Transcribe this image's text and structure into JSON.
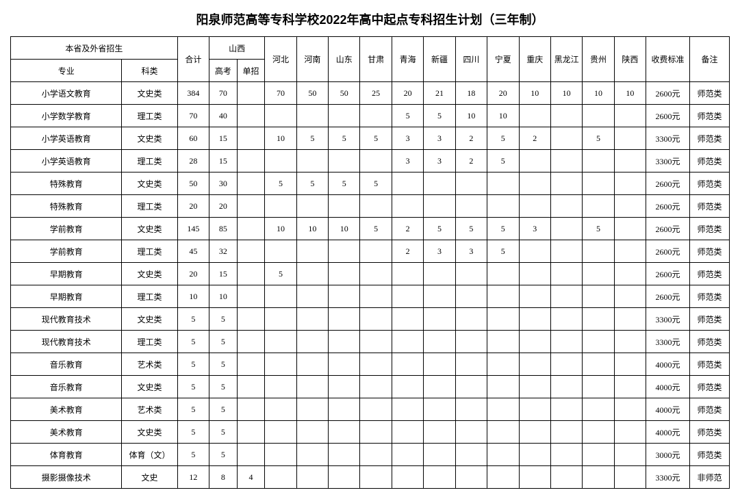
{
  "title": "阳泉师范高等专科学校2022年高中起点专科招生计划（三年制）",
  "headers": {
    "group_title": "本省及外省招生",
    "major": "专业",
    "category": "科类",
    "total": "合计",
    "shanxi": "山西",
    "gaokao": "高考",
    "danzhao": "单招",
    "provinces": [
      "河北",
      "河南",
      "山东",
      "甘肃",
      "青海",
      "新疆",
      "四川",
      "宁夏",
      "重庆",
      "黑龙江",
      "贵州",
      "陕西"
    ],
    "fee": "收费标准",
    "note": "备注"
  },
  "rows": [
    {
      "major": "小学语文教育",
      "cat": "文史类",
      "total": "384",
      "gk": "70",
      "dz": "",
      "p": [
        "70",
        "50",
        "50",
        "25",
        "20",
        "21",
        "18",
        "20",
        "10",
        "10",
        "10",
        "10"
      ],
      "fee": "2600元",
      "note": "师范类"
    },
    {
      "major": "小学数学教育",
      "cat": "理工类",
      "total": "70",
      "gk": "40",
      "dz": "",
      "p": [
        "",
        "",
        "",
        "",
        "5",
        "5",
        "10",
        "10",
        "",
        "",
        "",
        ""
      ],
      "fee": "2600元",
      "note": "师范类"
    },
    {
      "major": "小学英语教育",
      "cat": "文史类",
      "total": "60",
      "gk": "15",
      "dz": "",
      "p": [
        "10",
        "5",
        "5",
        "5",
        "3",
        "3",
        "2",
        "5",
        "2",
        "",
        "5",
        ""
      ],
      "fee": "3300元",
      "note": "师范类"
    },
    {
      "major": "小学英语教育",
      "cat": "理工类",
      "total": "28",
      "gk": "15",
      "dz": "",
      "p": [
        "",
        "",
        "",
        "",
        "3",
        "3",
        "2",
        "5",
        "",
        "",
        "",
        ""
      ],
      "fee": "3300元",
      "note": "师范类"
    },
    {
      "major": "特殊教育",
      "cat": "文史类",
      "total": "50",
      "gk": "30",
      "dz": "",
      "p": [
        "5",
        "5",
        "5",
        "5",
        "",
        "",
        "",
        "",
        "",
        "",
        "",
        ""
      ],
      "fee": "2600元",
      "note": "师范类"
    },
    {
      "major": "特殊教育",
      "cat": "理工类",
      "total": "20",
      "gk": "20",
      "dz": "",
      "p": [
        "",
        "",
        "",
        "",
        "",
        "",
        "",
        "",
        "",
        "",
        "",
        ""
      ],
      "fee": "2600元",
      "note": "师范类"
    },
    {
      "major": "学前教育",
      "cat": "文史类",
      "total": "145",
      "gk": "85",
      "dz": "",
      "p": [
        "10",
        "10",
        "10",
        "5",
        "2",
        "5",
        "5",
        "5",
        "3",
        "",
        "5",
        ""
      ],
      "fee": "2600元",
      "note": "师范类"
    },
    {
      "major": "学前教育",
      "cat": "理工类",
      "total": "45",
      "gk": "32",
      "dz": "",
      "p": [
        "",
        "",
        "",
        "",
        "2",
        "3",
        "3",
        "5",
        "",
        "",
        "",
        ""
      ],
      "fee": "2600元",
      "note": "师范类"
    },
    {
      "major": "早期教育",
      "cat": "文史类",
      "total": "20",
      "gk": "15",
      "dz": "",
      "p": [
        "5",
        "",
        "",
        "",
        "",
        "",
        "",
        "",
        "",
        "",
        "",
        ""
      ],
      "fee": "2600元",
      "note": "师范类"
    },
    {
      "major": "早期教育",
      "cat": "理工类",
      "total": "10",
      "gk": "10",
      "dz": "",
      "p": [
        "",
        "",
        "",
        "",
        "",
        "",
        "",
        "",
        "",
        "",
        "",
        ""
      ],
      "fee": "2600元",
      "note": "师范类"
    },
    {
      "major": "现代教育技术",
      "cat": "文史类",
      "total": "5",
      "gk": "5",
      "dz": "",
      "p": [
        "",
        "",
        "",
        "",
        "",
        "",
        "",
        "",
        "",
        "",
        "",
        ""
      ],
      "fee": "3300元",
      "note": "师范类"
    },
    {
      "major": "现代教育技术",
      "cat": "理工类",
      "total": "5",
      "gk": "5",
      "dz": "",
      "p": [
        "",
        "",
        "",
        "",
        "",
        "",
        "",
        "",
        "",
        "",
        "",
        ""
      ],
      "fee": "3300元",
      "note": "师范类"
    },
    {
      "major": "音乐教育",
      "cat": "艺术类",
      "total": "5",
      "gk": "5",
      "dz": "",
      "p": [
        "",
        "",
        "",
        "",
        "",
        "",
        "",
        "",
        "",
        "",
        "",
        ""
      ],
      "fee": "4000元",
      "note": "师范类"
    },
    {
      "major": "音乐教育",
      "cat": "文史类",
      "total": "5",
      "gk": "5",
      "dz": "",
      "p": [
        "",
        "",
        "",
        "",
        "",
        "",
        "",
        "",
        "",
        "",
        "",
        ""
      ],
      "fee": "4000元",
      "note": "师范类"
    },
    {
      "major": "美术教育",
      "cat": "艺术类",
      "total": "5",
      "gk": "5",
      "dz": "",
      "p": [
        "",
        "",
        "",
        "",
        "",
        "",
        "",
        "",
        "",
        "",
        "",
        ""
      ],
      "fee": "4000元",
      "note": "师范类"
    },
    {
      "major": "美术教育",
      "cat": "文史类",
      "total": "5",
      "gk": "5",
      "dz": "",
      "p": [
        "",
        "",
        "",
        "",
        "",
        "",
        "",
        "",
        "",
        "",
        "",
        ""
      ],
      "fee": "4000元",
      "note": "师范类"
    },
    {
      "major": "体育教育",
      "cat": "体育（文）",
      "total": "5",
      "gk": "5",
      "dz": "",
      "p": [
        "",
        "",
        "",
        "",
        "",
        "",
        "",
        "",
        "",
        "",
        "",
        ""
      ],
      "fee": "3000元",
      "note": "师范类"
    },
    {
      "major": "摄影摄像技术",
      "cat": "文史",
      "total": "12",
      "gk": "8",
      "dz": "4",
      "p": [
        "",
        "",
        "",
        "",
        "",
        "",
        "",
        "",
        "",
        "",
        "",
        ""
      ],
      "fee": "3300元",
      "note": "非师范"
    }
  ]
}
